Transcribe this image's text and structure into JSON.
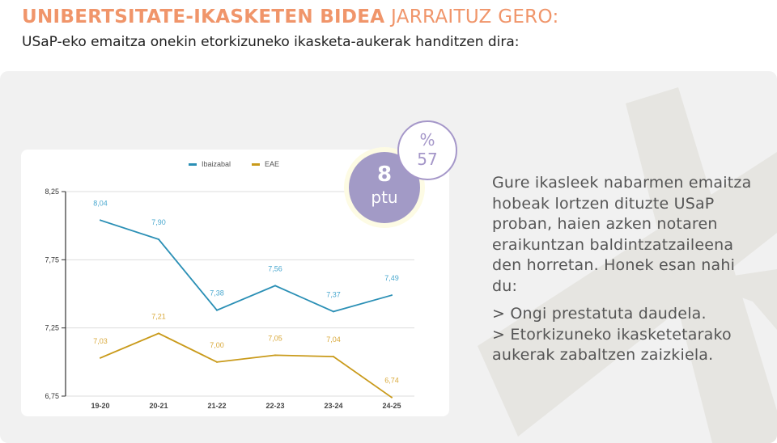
{
  "header": {
    "title_bold": "UNIBERTSITATE-IKASKETEN BIDEA",
    "title_light": " JARRAITUZ GERO:",
    "subtitle": "USaP-eko emaitza onekin etorkizuneko ikasketa-aukerak handitzen dira:"
  },
  "badge": {
    "value": "8",
    "unit": "ptu",
    "pct_symbol": "%",
    "pct_value": "57"
  },
  "body": {
    "paragraph": "Gure ikasleek nabarmen emaitza hobeak lortzen dituzte USaP proban, haien azken notaren eraikuntzan baldintzatzaileena den horretan. Honek esan nahi du:",
    "bullet1": "> Ongi prestatuta daudela.",
    "bullet2": "> Etorkizuneko ikasketetarako aukerak zabaltzen zaizkiela."
  },
  "colors": {
    "accent": "#f0956a",
    "ibaizabal": "#2a8fb5",
    "eae": "#c99a1a",
    "badge": "#a29ac6"
  },
  "chart_data": {
    "type": "line",
    "categories": [
      "19-20",
      "20-21",
      "21-22",
      "22-23",
      "23-24",
      "24-25"
    ],
    "series": [
      {
        "name": "Ibaizabal",
        "values": [
          8.04,
          7.9,
          7.38,
          7.56,
          7.37,
          7.49
        ],
        "labels": [
          "8,04",
          "7,90",
          "7,38",
          "7,56",
          "7,37",
          "7,49"
        ],
        "color": "#2a8fb5",
        "label_color": "#4aa8cf"
      },
      {
        "name": "EAE",
        "values": [
          7.03,
          7.21,
          7.0,
          7.05,
          7.04,
          6.74
        ],
        "labels": [
          "7,03",
          "7,21",
          "7,00",
          "7,05",
          "7,04",
          "6,74"
        ],
        "color": "#c99a1a",
        "label_color": "#d9a93a"
      }
    ],
    "yticks": [
      6.75,
      7.25,
      7.75,
      8.25
    ],
    "ytick_labels": [
      "6,75",
      "7,25",
      "7,75",
      "8,25"
    ],
    "ylim": [
      6.75,
      8.25
    ],
    "legend": "top-center",
    "grid": true
  }
}
